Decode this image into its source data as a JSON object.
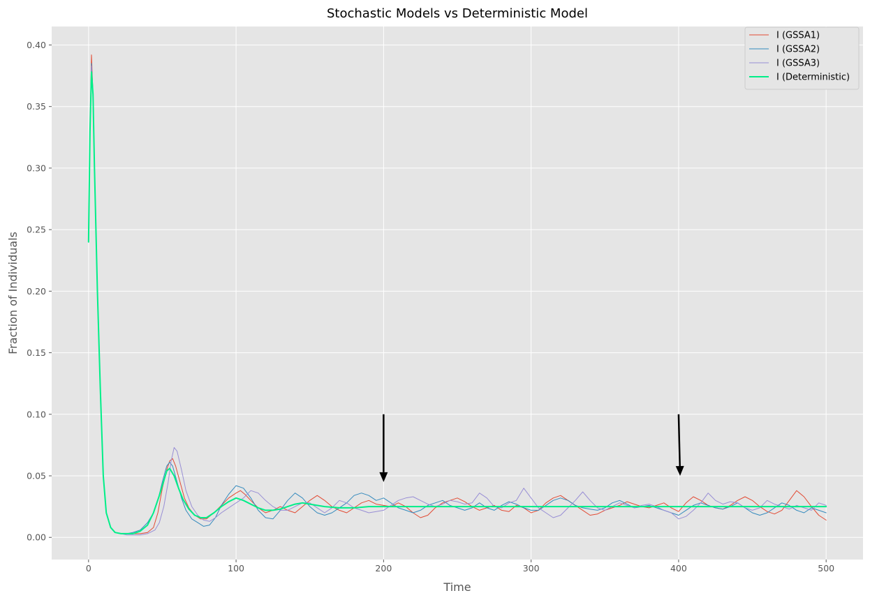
{
  "chart_data": {
    "type": "line",
    "title": "Stochastic Models vs Deterministic Model",
    "xlabel": "Time",
    "ylabel": "Fraction of Individuals",
    "xlim": [
      -25,
      525
    ],
    "ylim": [
      -0.018,
      0.415
    ],
    "xticks": [
      0,
      100,
      200,
      300,
      400,
      500
    ],
    "yticks": [
      0.0,
      0.05,
      0.1,
      0.15,
      0.2,
      0.25,
      0.3,
      0.35,
      0.4
    ],
    "xtick_labels": [
      "0",
      "100",
      "200",
      "300",
      "400",
      "500"
    ],
    "ytick_labels": [
      "0.00",
      "0.05",
      "0.10",
      "0.15",
      "0.20",
      "0.25",
      "0.30",
      "0.35",
      "0.40"
    ],
    "grid": true,
    "legend_position": "top-right",
    "background": "#e5e5e5",
    "series": [
      {
        "name": "I (GSSA1)",
        "color": "#e24a33",
        "width": 1,
        "x": [
          0,
          1,
          2,
          3,
          4,
          6,
          8,
          10,
          12,
          15,
          18,
          22,
          26,
          30,
          35,
          40,
          44,
          47,
          50,
          53,
          55,
          57,
          59,
          62,
          65,
          68,
          72,
          76,
          80,
          85,
          90,
          95,
          100,
          103,
          106,
          110,
          115,
          120,
          125,
          130,
          135,
          140,
          145,
          150,
          155,
          160,
          165,
          170,
          175,
          180,
          185,
          190,
          195,
          200,
          205,
          210,
          215,
          220,
          225,
          230,
          235,
          240,
          245,
          250,
          255,
          260,
          265,
          270,
          275,
          280,
          285,
          290,
          295,
          300,
          305,
          310,
          315,
          320,
          325,
          330,
          335,
          340,
          345,
          350,
          355,
          360,
          365,
          370,
          375,
          380,
          385,
          390,
          395,
          400,
          405,
          410,
          415,
          420,
          425,
          430,
          435,
          440,
          445,
          450,
          455,
          460,
          465,
          470,
          475,
          480,
          485,
          490,
          495,
          500
        ],
        "values": [
          0.24,
          0.33,
          0.392,
          0.36,
          0.3,
          0.2,
          0.12,
          0.05,
          0.02,
          0.008,
          0.004,
          0.003,
          0.003,
          0.003,
          0.003,
          0.004,
          0.008,
          0.02,
          0.04,
          0.055,
          0.062,
          0.064,
          0.058,
          0.045,
          0.032,
          0.024,
          0.018,
          0.015,
          0.015,
          0.02,
          0.026,
          0.032,
          0.036,
          0.038,
          0.035,
          0.03,
          0.024,
          0.02,
          0.022,
          0.025,
          0.022,
          0.02,
          0.025,
          0.03,
          0.034,
          0.03,
          0.025,
          0.022,
          0.02,
          0.024,
          0.028,
          0.03,
          0.027,
          0.026,
          0.025,
          0.028,
          0.025,
          0.02,
          0.016,
          0.018,
          0.024,
          0.028,
          0.03,
          0.032,
          0.029,
          0.025,
          0.022,
          0.024,
          0.026,
          0.022,
          0.021,
          0.026,
          0.024,
          0.02,
          0.022,
          0.028,
          0.032,
          0.034,
          0.03,
          0.026,
          0.022,
          0.018,
          0.019,
          0.022,
          0.024,
          0.026,
          0.029,
          0.027,
          0.025,
          0.024,
          0.026,
          0.028,
          0.024,
          0.021,
          0.028,
          0.033,
          0.03,
          0.026,
          0.024,
          0.023,
          0.026,
          0.03,
          0.033,
          0.03,
          0.025,
          0.021,
          0.019,
          0.022,
          0.03,
          0.038,
          0.033,
          0.025,
          0.018,
          0.014
        ]
      },
      {
        "name": "I (GSSA2)",
        "color": "#348abd",
        "width": 1,
        "x": [
          0,
          1,
          2,
          3,
          4,
          6,
          8,
          10,
          12,
          15,
          18,
          22,
          26,
          30,
          35,
          40,
          44,
          47,
          50,
          53,
          55,
          57,
          60,
          63,
          66,
          70,
          74,
          78,
          82,
          86,
          90,
          95,
          100,
          105,
          110,
          115,
          120,
          125,
          130,
          135,
          140,
          145,
          150,
          155,
          160,
          165,
          170,
          175,
          180,
          185,
          190,
          195,
          200,
          205,
          210,
          215,
          220,
          225,
          230,
          235,
          240,
          245,
          250,
          255,
          260,
          265,
          270,
          275,
          280,
          285,
          290,
          295,
          300,
          305,
          310,
          315,
          320,
          325,
          330,
          335,
          340,
          345,
          350,
          355,
          360,
          365,
          370,
          375,
          380,
          385,
          390,
          395,
          400,
          405,
          410,
          415,
          420,
          425,
          430,
          435,
          440,
          445,
          450,
          455,
          460,
          465,
          470,
          475,
          480,
          485,
          490,
          495,
          500
        ],
        "values": [
          0.24,
          0.33,
          0.385,
          0.36,
          0.3,
          0.2,
          0.12,
          0.05,
          0.02,
          0.008,
          0.004,
          0.003,
          0.003,
          0.004,
          0.006,
          0.012,
          0.02,
          0.03,
          0.045,
          0.058,
          0.061,
          0.058,
          0.045,
          0.032,
          0.022,
          0.015,
          0.012,
          0.009,
          0.01,
          0.016,
          0.026,
          0.035,
          0.042,
          0.04,
          0.032,
          0.022,
          0.016,
          0.015,
          0.022,
          0.03,
          0.036,
          0.032,
          0.025,
          0.02,
          0.018,
          0.02,
          0.024,
          0.028,
          0.034,
          0.036,
          0.034,
          0.03,
          0.032,
          0.028,
          0.024,
          0.022,
          0.02,
          0.022,
          0.026,
          0.028,
          0.03,
          0.026,
          0.024,
          0.022,
          0.024,
          0.028,
          0.024,
          0.022,
          0.026,
          0.029,
          0.027,
          0.024,
          0.022,
          0.022,
          0.026,
          0.03,
          0.032,
          0.03,
          0.026,
          0.024,
          0.023,
          0.022,
          0.024,
          0.028,
          0.03,
          0.027,
          0.024,
          0.025,
          0.026,
          0.024,
          0.022,
          0.02,
          0.018,
          0.022,
          0.026,
          0.028,
          0.026,
          0.024,
          0.023,
          0.025,
          0.028,
          0.024,
          0.02,
          0.018,
          0.02,
          0.024,
          0.028,
          0.026,
          0.022,
          0.02,
          0.024,
          0.022,
          0.02
        ]
      },
      {
        "name": "I (GSSA3)",
        "color": "#988ed5",
        "width": 1,
        "x": [
          0,
          1,
          2,
          3,
          4,
          6,
          8,
          10,
          12,
          15,
          18,
          22,
          26,
          30,
          35,
          40,
          45,
          48,
          51,
          54,
          56,
          58,
          60,
          63,
          66,
          70,
          74,
          78,
          82,
          86,
          90,
          95,
          100,
          105,
          110,
          115,
          120,
          125,
          130,
          135,
          140,
          145,
          150,
          155,
          160,
          165,
          170,
          175,
          180,
          185,
          190,
          195,
          200,
          205,
          210,
          215,
          220,
          225,
          230,
          235,
          240,
          245,
          250,
          255,
          260,
          265,
          270,
          275,
          280,
          285,
          290,
          295,
          300,
          305,
          310,
          315,
          320,
          325,
          330,
          335,
          340,
          345,
          350,
          355,
          360,
          365,
          370,
          375,
          380,
          385,
          390,
          395,
          400,
          405,
          410,
          415,
          420,
          425,
          430,
          435,
          440,
          445,
          450,
          455,
          460,
          465,
          470,
          475,
          480,
          485,
          490,
          495,
          500
        ],
        "values": [
          0.24,
          0.33,
          0.383,
          0.36,
          0.3,
          0.2,
          0.12,
          0.05,
          0.02,
          0.008,
          0.004,
          0.003,
          0.002,
          0.002,
          0.002,
          0.003,
          0.006,
          0.012,
          0.025,
          0.045,
          0.062,
          0.073,
          0.07,
          0.055,
          0.038,
          0.025,
          0.018,
          0.014,
          0.013,
          0.016,
          0.02,
          0.024,
          0.028,
          0.032,
          0.038,
          0.036,
          0.03,
          0.025,
          0.022,
          0.022,
          0.025,
          0.028,
          0.028,
          0.024,
          0.02,
          0.024,
          0.03,
          0.028,
          0.024,
          0.022,
          0.02,
          0.021,
          0.022,
          0.026,
          0.03,
          0.032,
          0.033,
          0.03,
          0.027,
          0.025,
          0.027,
          0.03,
          0.029,
          0.027,
          0.028,
          0.036,
          0.032,
          0.025,
          0.024,
          0.028,
          0.03,
          0.04,
          0.032,
          0.024,
          0.02,
          0.016,
          0.018,
          0.024,
          0.03,
          0.037,
          0.03,
          0.024,
          0.022,
          0.025,
          0.028,
          0.026,
          0.024,
          0.026,
          0.027,
          0.025,
          0.022,
          0.02,
          0.015,
          0.017,
          0.022,
          0.028,
          0.036,
          0.03,
          0.027,
          0.029,
          0.028,
          0.024,
          0.022,
          0.024,
          0.03,
          0.027,
          0.025,
          0.023,
          0.026,
          0.024,
          0.022,
          0.028,
          0.026
        ]
      },
      {
        "name": "I (Deterministic)",
        "color": "#00ee88",
        "width": 2,
        "x": [
          0,
          1,
          2,
          3,
          4,
          6,
          8,
          10,
          12,
          15,
          18,
          22,
          26,
          30,
          35,
          40,
          44,
          48,
          51,
          53,
          55,
          58,
          61,
          64,
          68,
          72,
          76,
          80,
          85,
          90,
          95,
          100,
          105,
          110,
          115,
          120,
          125,
          130,
          135,
          140,
          145,
          150,
          160,
          170,
          180,
          190,
          200,
          220,
          240,
          260,
          280,
          300,
          320,
          340,
          360,
          380,
          400,
          420,
          440,
          460,
          480,
          500
        ],
        "values": [
          0.24,
          0.33,
          0.378,
          0.36,
          0.3,
          0.2,
          0.12,
          0.05,
          0.02,
          0.008,
          0.004,
          0.003,
          0.003,
          0.003,
          0.005,
          0.01,
          0.02,
          0.034,
          0.046,
          0.054,
          0.056,
          0.05,
          0.04,
          0.031,
          0.023,
          0.018,
          0.016,
          0.016,
          0.02,
          0.025,
          0.029,
          0.032,
          0.03,
          0.027,
          0.024,
          0.022,
          0.022,
          0.023,
          0.025,
          0.027,
          0.028,
          0.027,
          0.025,
          0.024,
          0.024,
          0.025,
          0.025,
          0.025,
          0.025,
          0.025,
          0.025,
          0.025,
          0.025,
          0.025,
          0.025,
          0.025,
          0.025,
          0.025,
          0.025,
          0.025,
          0.025,
          0.025
        ]
      }
    ],
    "annotations": [
      {
        "type": "arrow",
        "x_from": 200,
        "y_from": 0.1,
        "x_to": 200,
        "y_to": 0.045,
        "color": "#000000"
      },
      {
        "type": "arrow",
        "x_from": 400,
        "y_from": 0.1,
        "x_to": 401,
        "y_to": 0.05,
        "color": "#000000"
      }
    ]
  }
}
